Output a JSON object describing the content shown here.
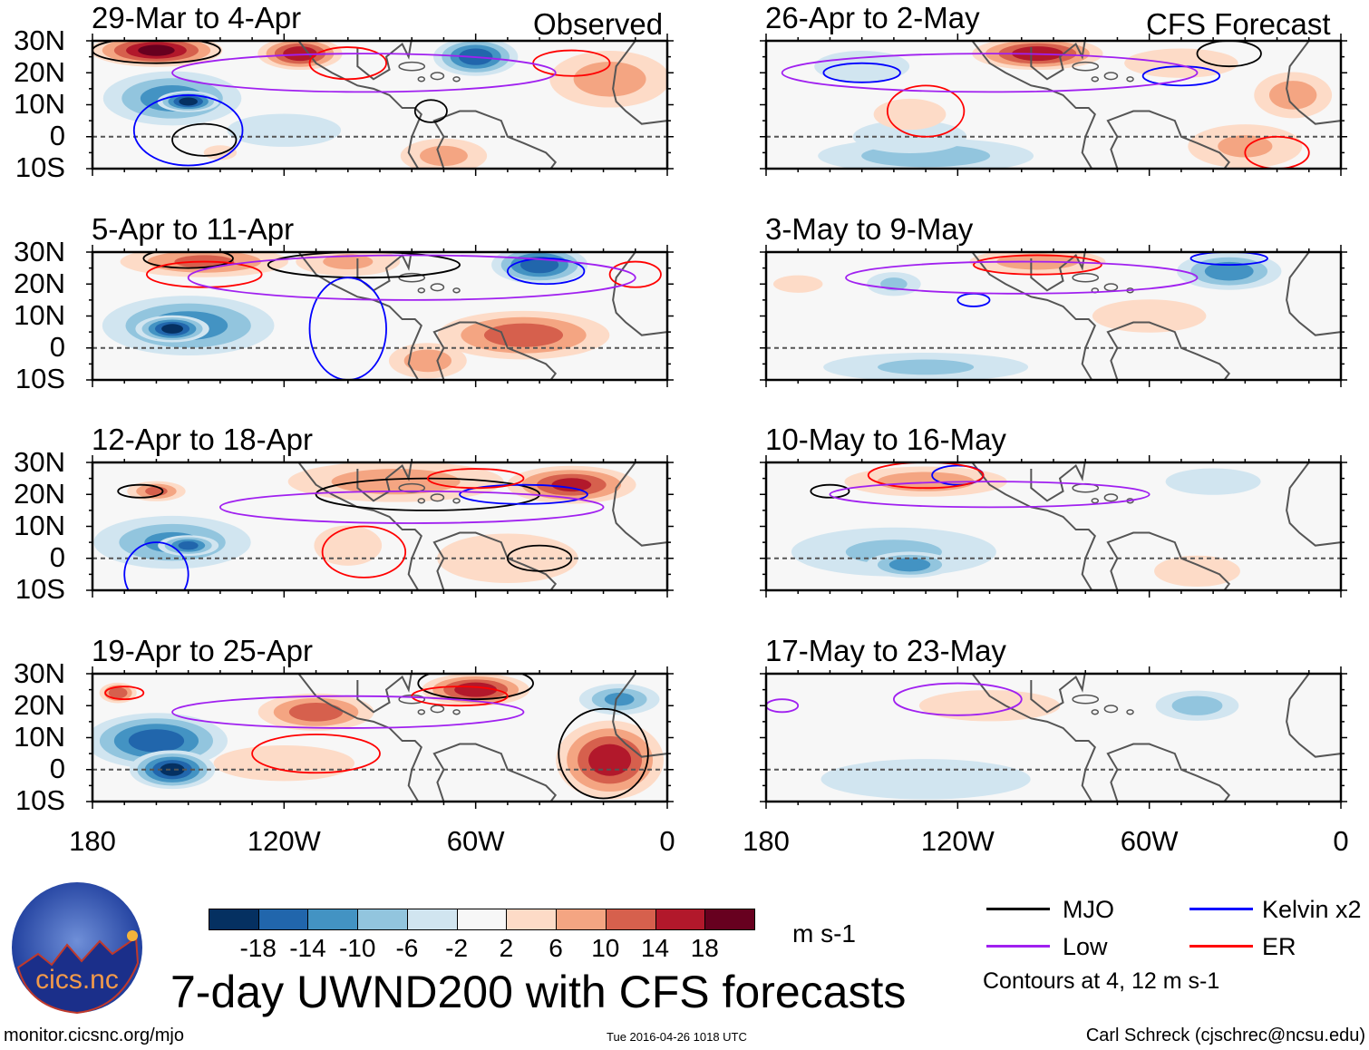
{
  "figure_title": "7-day UWND200 with CFS forecasts",
  "labels": {
    "observed": "Observed",
    "forecast": "CFS Forecast"
  },
  "lat_labels": [
    "30N",
    "20N",
    "10N",
    "0",
    "10S"
  ],
  "lon_labels": [
    "180",
    "120W",
    "60W",
    "0"
  ],
  "colorbar": {
    "units": "m s-1",
    "tick_labels": [
      "-18",
      "-14",
      "-10",
      "-6",
      "-2",
      "2",
      "6",
      "10",
      "14",
      "18"
    ],
    "colors": [
      "#053061",
      "#2166ac",
      "#4393c3",
      "#92c5de",
      "#d1e5f0",
      "#f7f7f7",
      "#fddbc7",
      "#f4a582",
      "#d6604d",
      "#b2182b",
      "#67001f"
    ]
  },
  "legend": {
    "items": [
      {
        "label": "MJO",
        "color": "#000000"
      },
      {
        "label": "Kelvin x2",
        "color": "#0000ff"
      },
      {
        "label": "Low",
        "color": "#a020f0"
      },
      {
        "label": "ER",
        "color": "#ff0000"
      }
    ],
    "note": "Contours at 4, 12 m s-1"
  },
  "footer": {
    "left": "monitor.cicsnc.org/mjo",
    "center": "Tue 2016-04-26 1018 UTC",
    "right": "Carl Schreck (cjschrec@ncsu.edu)"
  },
  "logo_text": "cics.nc",
  "chart_data": {
    "type": "heatmap",
    "variable": "200-hPa zonal wind anomaly (m s-1)",
    "lon_range": [
      -180,
      0
    ],
    "lat_range": [
      -10,
      30
    ],
    "panels": [
      {
        "title": "29-Mar to 4-Apr",
        "type": "observed",
        "anomalies": [
          [
            -160,
            27,
            22,
            5,
            20
          ],
          [
            -115,
            26,
            14,
            5,
            18
          ],
          [
            -155,
            12,
            24,
            9,
            -14
          ],
          [
            -150,
            11,
            10,
            3,
            -20
          ],
          [
            -60,
            25,
            14,
            6,
            -18
          ],
          [
            -18,
            18,
            22,
            10,
            10
          ],
          [
            -70,
            -6,
            16,
            6,
            9
          ],
          [
            -120,
            2,
            30,
            8,
            -4
          ],
          [
            -140,
            -5,
            8,
            3,
            4
          ]
        ],
        "contours": [
          [
            "MJO",
            -145,
            -1,
            10,
            5
          ],
          [
            "MJO",
            -74,
            8,
            5,
            3.5
          ],
          [
            "MJO",
            -160,
            27,
            20,
            4
          ],
          [
            "Kelvin",
            -150,
            2,
            17,
            11
          ],
          [
            "ER",
            -100,
            23,
            12,
            5
          ],
          [
            "ER",
            -30,
            23,
            12,
            4
          ],
          [
            "Low",
            -95,
            20,
            60,
            6
          ]
        ]
      },
      {
        "title": "5-Apr to 11-Apr",
        "type": "observed",
        "anomalies": [
          [
            -145,
            27,
            30,
            5,
            12
          ],
          [
            -100,
            27,
            20,
            5,
            8
          ],
          [
            -150,
            7,
            30,
            10,
            -14
          ],
          [
            -155,
            6,
            12,
            4,
            -20
          ],
          [
            -40,
            26,
            16,
            6,
            -18
          ],
          [
            -45,
            4,
            30,
            8,
            14
          ],
          [
            -75,
            -4,
            14,
            6,
            10
          ]
        ],
        "contours": [
          [
            "MJO",
            -150,
            28,
            14,
            3
          ],
          [
            "MJO",
            -95,
            26,
            30,
            4
          ],
          [
            "Kelvin",
            -100,
            6,
            12,
            16
          ],
          [
            "Kelvin",
            -38,
            24,
            12,
            4
          ],
          [
            "ER",
            -145,
            23,
            18,
            4
          ],
          [
            "ER",
            -10,
            23,
            8,
            4
          ],
          [
            "Low",
            -80,
            22,
            70,
            7
          ]
        ]
      },
      {
        "title": "12-Apr to 18-Apr",
        "type": "observed",
        "anomalies": [
          [
            -160,
            21,
            10,
            3,
            12
          ],
          [
            -155,
            5,
            28,
            9,
            -12
          ],
          [
            -150,
            4,
            10,
            3,
            -16
          ],
          [
            -85,
            24,
            40,
            7,
            10
          ],
          [
            -30,
            23,
            22,
            6,
            16
          ],
          [
            -100,
            4,
            14,
            8,
            6
          ],
          [
            -50,
            0,
            30,
            10,
            6
          ]
        ],
        "contours": [
          [
            "MJO",
            -75,
            20,
            35,
            5
          ],
          [
            "MJO",
            -40,
            0,
            10,
            4
          ],
          [
            "MJO",
            -165,
            21,
            7,
            2
          ],
          [
            "Kelvin",
            -45,
            20,
            20,
            3
          ],
          [
            "Kelvin",
            -160,
            -5,
            10,
            10
          ],
          [
            "ER",
            -95,
            2,
            13,
            8
          ],
          [
            "ER",
            -60,
            25,
            15,
            3
          ],
          [
            "Low",
            -80,
            16,
            60,
            5
          ]
        ]
      },
      {
        "title": "19-Apr to 25-Apr",
        "type": "observed",
        "anomalies": [
          [
            -172,
            24,
            6,
            3,
            14
          ],
          [
            -160,
            9,
            24,
            9,
            -18
          ],
          [
            -155,
            0,
            14,
            6,
            -20
          ],
          [
            -110,
            18,
            20,
            6,
            14
          ],
          [
            -60,
            25,
            18,
            5,
            18
          ],
          [
            -15,
            22,
            14,
            5,
            -12
          ],
          [
            -18,
            3,
            18,
            13,
            18
          ],
          [
            -120,
            2,
            30,
            7,
            6
          ]
        ],
        "contours": [
          [
            "MJO",
            -60,
            27,
            18,
            5
          ],
          [
            "MJO",
            -20,
            5,
            14,
            14
          ],
          [
            "ER",
            -110,
            5,
            20,
            6
          ],
          [
            "ER",
            -65,
            23,
            15,
            3
          ],
          [
            "ER",
            -170,
            24,
            6,
            2
          ],
          [
            "Low",
            -100,
            18,
            55,
            5
          ]
        ]
      },
      {
        "title": "26-Apr to 2-May",
        "type": "forecast",
        "anomalies": [
          [
            -95,
            26,
            22,
            5,
            18
          ],
          [
            -150,
            22,
            20,
            6,
            -6
          ],
          [
            -130,
            -6,
            40,
            6,
            -10
          ],
          [
            -135,
            0,
            30,
            8,
            -4
          ],
          [
            -135,
            7,
            15,
            6,
            6
          ],
          [
            -30,
            -3,
            22,
            8,
            8
          ],
          [
            -15,
            13,
            14,
            8,
            10
          ],
          [
            -50,
            23,
            30,
            7,
            4
          ]
        ],
        "contours": [
          [
            "MJO",
            -35,
            26,
            10,
            4
          ],
          [
            "Kelvin",
            -150,
            20,
            12,
            3
          ],
          [
            "Kelvin",
            -50,
            19,
            12,
            3
          ],
          [
            "ER",
            -130,
            8,
            12,
            8
          ],
          [
            "ER",
            -20,
            -5,
            10,
            5
          ],
          [
            "Low",
            -110,
            20,
            65,
            6
          ]
        ]
      },
      {
        "title": "3-May to 9-May",
        "type": "forecast",
        "anomalies": [
          [
            -95,
            27,
            25,
            4,
            10
          ],
          [
            -35,
            24,
            18,
            6,
            -14
          ],
          [
            -140,
            20,
            10,
            4,
            -8
          ],
          [
            -130,
            -6,
            40,
            5,
            -8
          ],
          [
            -170,
            20,
            10,
            3,
            6
          ],
          [
            -60,
            10,
            30,
            8,
            4
          ]
        ],
        "contours": [
          [
            "Kelvin",
            -115,
            15,
            5,
            2
          ],
          [
            "Kelvin",
            -35,
            28,
            12,
            2
          ],
          [
            "ER",
            -95,
            26,
            20,
            3
          ],
          [
            "Low",
            -100,
            22,
            55,
            5
          ]
        ]
      },
      {
        "title": "10-May to 16-May",
        "type": "forecast",
        "anomalies": [
          [
            -130,
            24,
            30,
            5,
            10
          ],
          [
            -140,
            2,
            40,
            9,
            -8
          ],
          [
            -135,
            -2,
            15,
            4,
            -14
          ],
          [
            -45,
            -4,
            18,
            6,
            6
          ],
          [
            -40,
            24,
            20,
            5,
            -6
          ],
          [
            -70,
            10,
            20,
            8,
            2
          ]
        ],
        "contours": [
          [
            "MJO",
            -160,
            21,
            6,
            2
          ],
          [
            "Kelvin",
            -120,
            26,
            8,
            3
          ],
          [
            "ER",
            -130,
            26,
            18,
            4
          ],
          [
            "Low",
            -110,
            20,
            50,
            4
          ]
        ]
      },
      {
        "title": "17-May to 23-May",
        "type": "forecast",
        "anomalies": [
          [
            -110,
            20,
            30,
            6,
            6
          ],
          [
            -130,
            -3,
            45,
            8,
            -6
          ],
          [
            -45,
            20,
            15,
            5,
            -10
          ],
          [
            -160,
            15,
            20,
            6,
            -2
          ]
        ],
        "contours": [
          [
            "Low",
            -120,
            22,
            20,
            5
          ],
          [
            "Low",
            -175,
            20,
            5,
            2
          ]
        ]
      }
    ]
  }
}
